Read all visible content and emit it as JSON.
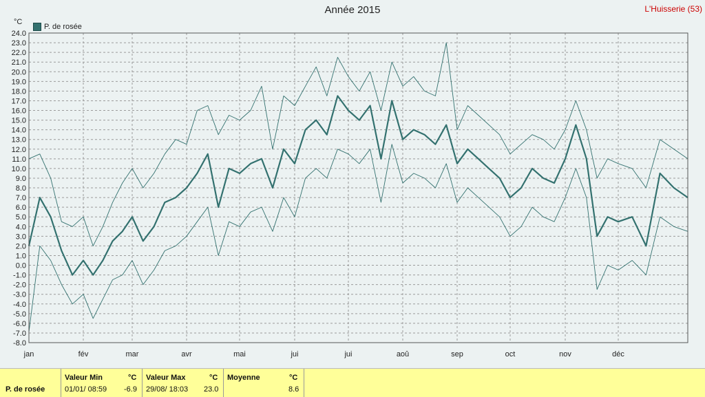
{
  "title": "Année 2015",
  "station": "L'Huisserie (53)",
  "unit": "°C",
  "legend_label": "P. de rosée",
  "colors": {
    "series": "#33716f",
    "grid": "#9a9a9a",
    "background": "#ecf2f2",
    "footer": "#ffff99",
    "station": "#cc0000"
  },
  "chart_data": {
    "type": "line",
    "title": "Année 2015",
    "ylabel": "°C",
    "ylim": [
      -8.0,
      24.0
    ],
    "y_ticks": [
      "-8.0",
      "-7.0",
      "-6.0",
      "-5.0",
      "-4.0",
      "-3.0",
      "-2.0",
      "-1.0",
      "0.0",
      "1.0",
      "2.0",
      "3.0",
      "4.0",
      "5.0",
      "6.0",
      "7.0",
      "8.0",
      "9.0",
      "10.0",
      "11.0",
      "12.0",
      "13.0",
      "14.0",
      "15.0",
      "16.0",
      "17.0",
      "18.0",
      "19.0",
      "20.0",
      "21.0",
      "22.0",
      "23.0",
      "24.0"
    ],
    "x_ticks": [
      "jan",
      "fév",
      "mar",
      "avr",
      "mai",
      "jui",
      "jui",
      "aoû",
      "sep",
      "oct",
      "nov",
      "déc"
    ],
    "grid": true,
    "legend_position": "top-left",
    "series": [
      {
        "name": "P. de rosée",
        "x_unit": "month",
        "x": [
          0.0,
          0.2,
          0.4,
          0.6,
          0.8,
          1.0,
          1.2,
          1.4,
          1.6,
          1.8,
          2.0,
          2.2,
          2.4,
          2.6,
          2.8,
          3.0,
          3.2,
          3.4,
          3.6,
          3.8,
          4.0,
          4.2,
          4.4,
          4.6,
          4.8,
          5.0,
          5.2,
          5.4,
          5.6,
          5.8,
          6.0,
          6.2,
          6.4,
          6.6,
          6.8,
          7.0,
          7.2,
          7.4,
          7.6,
          7.8,
          8.0,
          8.2,
          8.4,
          8.6,
          8.8,
          9.0,
          9.2,
          9.4,
          9.6,
          9.8,
          10.0,
          10.2,
          10.4,
          10.6,
          10.8,
          11.0,
          11.2,
          11.4,
          11.6,
          11.8,
          12.0
        ],
        "values": [
          2.0,
          7.0,
          5.0,
          1.5,
          -1.0,
          0.5,
          -1.0,
          0.5,
          2.5,
          3.5,
          5.0,
          2.5,
          4.0,
          6.5,
          7.0,
          8.0,
          9.5,
          11.5,
          6.0,
          10.0,
          9.5,
          10.5,
          11.0,
          8.0,
          12.0,
          10.5,
          14.0,
          15.0,
          13.5,
          17.5,
          16.0,
          15.0,
          16.5,
          11.0,
          17.0,
          13.0,
          14.0,
          13.5,
          12.5,
          14.5,
          10.5,
          12.0,
          11.0,
          10.0,
          9.0,
          7.0,
          8.0,
          10.0,
          9.0,
          8.5,
          11.0,
          14.5,
          11.0,
          3.0,
          5.0,
          4.5,
          5.0,
          2.0,
          9.5,
          8.0,
          7.0
        ],
        "max_values": [
          11.0,
          11.5,
          9.0,
          4.5,
          4.0,
          5.0,
          2.0,
          4.0,
          6.5,
          8.5,
          10.0,
          8.0,
          9.5,
          11.5,
          13.0,
          12.5,
          16.0,
          16.5,
          13.5,
          15.5,
          15.0,
          16.0,
          18.5,
          12.0,
          17.5,
          16.5,
          18.5,
          20.5,
          17.5,
          21.5,
          19.5,
          18.0,
          20.0,
          16.0,
          21.0,
          18.5,
          19.5,
          18.0,
          17.5,
          23.0,
          14.0,
          16.5,
          15.5,
          14.5,
          13.5,
          11.5,
          12.5,
          13.5,
          13.0,
          12.0,
          14.0,
          17.0,
          14.0,
          9.0,
          11.0,
          10.5,
          10.0,
          8.0,
          13.0,
          12.0,
          11.0
        ],
        "min_values": [
          -6.9,
          2.0,
          0.5,
          -2.0,
          -4.0,
          -3.0,
          -5.5,
          -3.5,
          -1.5,
          -1.0,
          0.5,
          -2.0,
          -0.5,
          1.5,
          2.0,
          3.0,
          4.5,
          6.0,
          1.0,
          4.5,
          4.0,
          5.5,
          6.0,
          3.5,
          7.0,
          5.0,
          9.0,
          10.0,
          9.0,
          12.0,
          11.5,
          10.5,
          12.0,
          6.5,
          12.5,
          8.5,
          9.5,
          9.0,
          8.0,
          10.5,
          6.5,
          8.0,
          7.0,
          6.0,
          5.0,
          3.0,
          4.0,
          6.0,
          5.0,
          4.5,
          7.0,
          10.0,
          7.0,
          -2.5,
          0.0,
          -0.5,
          0.5,
          -1.0,
          5.0,
          4.0,
          3.5
        ]
      }
    ]
  },
  "footer": {
    "series_label": "P. de rosée",
    "min_label": "Valeur Min",
    "min_unit": "°C",
    "min_date": "01/01/ 08:59",
    "min_value": "-6.9",
    "max_label": "Valeur Max",
    "max_unit": "°C",
    "max_date": "29/08/ 18:03",
    "max_value": "23.0",
    "avg_label": "Moyenne",
    "avg_unit": "°C",
    "avg_value": "8.6"
  }
}
